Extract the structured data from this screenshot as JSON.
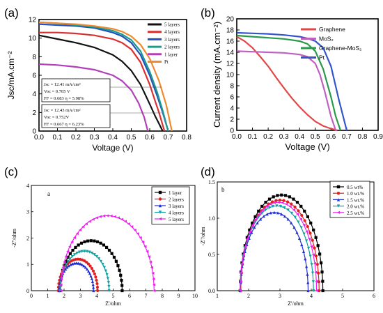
{
  "panels": {
    "a": {
      "label": "(a)"
    },
    "b": {
      "label": "(b)"
    },
    "c": {
      "label": "(c)",
      "inner_label": "a"
    },
    "d": {
      "label": "(d)",
      "inner_label": "b"
    }
  },
  "chart_data": [
    {
      "id": "a",
      "type": "line",
      "xlabel": "Voltage (V)",
      "ylabel": "Jsc/mA.cm⁻²",
      "xlim": [
        0,
        0.8
      ],
      "ylim": [
        0,
        12
      ],
      "xticks": [
        "0.0",
        "0.1",
        "0.2",
        "0.3",
        "0.4",
        "0.5",
        "0.6",
        "0.7",
        "0.8"
      ],
      "yticks": [
        "0",
        "2",
        "4",
        "6",
        "8",
        "10",
        "12"
      ],
      "legend_position": "top-right",
      "annotations": [
        [
          "Jsc = 12.41 mA/cm²",
          "Voc = 0.705 V",
          "FF = 0.683   η = 5.98%"
        ],
        [
          "Jsc = 12.43 mA/cm²",
          "Voc = 0.752V",
          "FF = 0.667   η = 6.23%"
        ]
      ],
      "series": [
        {
          "name": "5 layers",
          "color": "#111111",
          "x": [
            0,
            0.1,
            0.2,
            0.3,
            0.4,
            0.45,
            0.5,
            0.55,
            0.6,
            0.63,
            0.65,
            0.67
          ],
          "y": [
            10.3,
            9.9,
            9.5,
            9.0,
            8.2,
            7.5,
            6.5,
            5.0,
            2.9,
            1.6,
            0.8,
            0
          ]
        },
        {
          "name": "4 layers",
          "color": "#d93030",
          "x": [
            0,
            0.1,
            0.2,
            0.3,
            0.4,
            0.45,
            0.5,
            0.55,
            0.6,
            0.63,
            0.65,
            0.68
          ],
          "y": [
            10.6,
            10.6,
            10.5,
            10.3,
            9.9,
            9.5,
            8.8,
            7.4,
            5.0,
            3.2,
            2.0,
            0
          ]
        },
        {
          "name": "3 layers",
          "color": "#2050c0",
          "x": [
            0,
            0.1,
            0.2,
            0.3,
            0.4,
            0.45,
            0.5,
            0.55,
            0.6,
            0.64,
            0.67,
            0.7
          ],
          "y": [
            11.5,
            11.4,
            11.3,
            11.1,
            10.6,
            10.2,
            9.5,
            8.2,
            6.0,
            3.8,
            2.0,
            0
          ]
        },
        {
          "name": "2 layers",
          "color": "#1f9a8a",
          "x": [
            0,
            0.1,
            0.2,
            0.3,
            0.4,
            0.45,
            0.5,
            0.55,
            0.6,
            0.64,
            0.67,
            0.7
          ],
          "y": [
            11.7,
            11.6,
            11.4,
            11.2,
            10.8,
            10.4,
            9.8,
            8.6,
            6.4,
            4.2,
            2.2,
            0
          ]
        },
        {
          "name": "1 layer",
          "color": "#b040b8",
          "x": [
            0,
            0.1,
            0.2,
            0.3,
            0.4,
            0.45,
            0.5,
            0.54,
            0.57,
            0.59
          ],
          "y": [
            7.2,
            7.1,
            6.9,
            6.6,
            6.0,
            5.4,
            4.4,
            3.0,
            1.5,
            0
          ]
        },
        {
          "name": "Pt",
          "color": "#f08a30",
          "x": [
            0,
            0.1,
            0.2,
            0.3,
            0.4,
            0.45,
            0.5,
            0.55,
            0.6,
            0.65,
            0.69,
            0.72
          ],
          "y": [
            11.7,
            11.6,
            11.5,
            11.3,
            11.0,
            10.7,
            10.2,
            9.3,
            7.8,
            5.4,
            2.8,
            0
          ]
        }
      ]
    },
    {
      "id": "b",
      "type": "line",
      "xlabel": "Voltage (V)",
      "ylabel": "Current density (mA.cm⁻²)",
      "xlim": [
        0,
        0.9
      ],
      "ylim": [
        0,
        20
      ],
      "xticks": [
        "0.0",
        "0.1",
        "0.2",
        "0.3",
        "0.4",
        "0.5",
        "0.6",
        "0.7",
        "0.8",
        "0.9"
      ],
      "yticks": [
        "0",
        "2",
        "4",
        "6",
        "8",
        "10",
        "12",
        "14",
        "16",
        "18",
        "20"
      ],
      "legend_position": "top-right",
      "series": [
        {
          "name": "Graphene",
          "color": "#e04848",
          "x": [
            0,
            0.05,
            0.1,
            0.15,
            0.2,
            0.25,
            0.3,
            0.35,
            0.4,
            0.45,
            0.5,
            0.55,
            0.6,
            0.64
          ],
          "y": [
            16.8,
            16.0,
            14.8,
            13.2,
            11.5,
            9.5,
            7.6,
            5.8,
            4.2,
            2.8,
            1.6,
            0.8,
            0.3,
            0
          ]
        },
        {
          "name": "MoS₂",
          "color": "#c060c0",
          "x": [
            0,
            0.1,
            0.2,
            0.3,
            0.4,
            0.45,
            0.5,
            0.53,
            0.56,
            0.6,
            0.63
          ],
          "y": [
            14.2,
            14.1,
            14.0,
            13.9,
            13.6,
            13.2,
            12.0,
            10.0,
            7.0,
            2.5,
            0
          ]
        },
        {
          "name": "Graphene-MoS₂",
          "color": "#2a9a4a",
          "x": [
            0,
            0.1,
            0.2,
            0.3,
            0.4,
            0.45,
            0.5,
            0.55,
            0.6,
            0.63,
            0.66
          ],
          "y": [
            17.0,
            16.8,
            16.6,
            16.4,
            16.0,
            15.5,
            14.2,
            11.0,
            6.0,
            2.5,
            0
          ]
        },
        {
          "name": "Pt",
          "color": "#3355cc",
          "x": [
            0,
            0.1,
            0.2,
            0.3,
            0.4,
            0.45,
            0.5,
            0.55,
            0.6,
            0.65,
            0.7
          ],
          "y": [
            17.5,
            17.4,
            17.3,
            17.1,
            16.8,
            16.5,
            16.0,
            14.8,
            11.5,
            5.5,
            0
          ]
        }
      ]
    },
    {
      "id": "c",
      "type": "scatter",
      "xlabel": "Z'/ohm",
      "ylabel": "-Z''/ohm",
      "xlim": [
        0,
        10
      ],
      "ylim": [
        0,
        4
      ],
      "xticks": [
        "0",
        "1",
        "2",
        "3",
        "4",
        "5",
        "6",
        "7",
        "8",
        "9",
        "10"
      ],
      "yticks": [
        "0",
        "1",
        "2",
        "3",
        "4"
      ],
      "legend_position": "top-right",
      "series": [
        {
          "name": "1 layer",
          "color": "#000000",
          "marker": "square",
          "center": 3.65,
          "radius": 1.9,
          "points": 30
        },
        {
          "name": "2 layers",
          "color": "#e02020",
          "marker": "circle",
          "center": 2.85,
          "radius": 1.2,
          "points": 28
        },
        {
          "name": "3 layers",
          "color": "#2030d0",
          "marker": "triangle",
          "center": 2.75,
          "radius": 1.05,
          "points": 28
        },
        {
          "name": "4 layers",
          "color": "#10a0a0",
          "marker": "triangle-down",
          "center": 3.25,
          "radius": 1.5,
          "points": 30
        },
        {
          "name": "5 layers",
          "color": "#f020f0",
          "marker": "triangle-left",
          "center": 4.65,
          "radius": 2.85,
          "points": 40
        }
      ]
    },
    {
      "id": "d",
      "type": "scatter",
      "xlabel": "Z'/ohm",
      "ylabel": "-Z''/ohm",
      "xlim": [
        1,
        6
      ],
      "ylim": [
        0,
        1.5
      ],
      "xticks": [
        "1",
        "2",
        "3",
        "4",
        "5",
        "6"
      ],
      "yticks": [
        "0.0",
        "0.5",
        "1.0",
        "1.5"
      ],
      "legend_position": "top-right",
      "series": [
        {
          "name": "0.5 wt%",
          "color": "#000000",
          "marker": "square",
          "center": 3.05,
          "radius": 1.32,
          "points": 32
        },
        {
          "name": "1.0 wt.%",
          "color": "#e02020",
          "marker": "circle",
          "center": 3.0,
          "radius": 1.25,
          "points": 32
        },
        {
          "name": "1.5 wt.%",
          "color": "#2030d0",
          "marker": "triangle",
          "center": 2.82,
          "radius": 1.08,
          "points": 30
        },
        {
          "name": "2.0 wt.%",
          "color": "#10a0a0",
          "marker": "triangle-down",
          "center": 2.9,
          "radius": 1.17,
          "points": 30
        },
        {
          "name": "2.5 wt.%",
          "color": "#f020f0",
          "marker": "triangle-left",
          "center": 2.95,
          "radius": 1.22,
          "points": 30
        }
      ]
    }
  ]
}
